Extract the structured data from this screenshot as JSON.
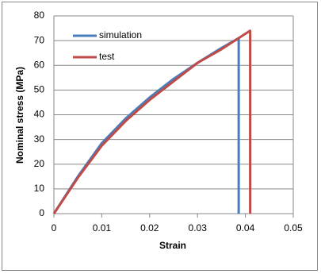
{
  "chart_data": {
    "type": "line",
    "xlabel": "Strain",
    "ylabel": "Nominal stress (MPa)",
    "xlim": [
      0,
      0.05
    ],
    "xticks": [
      0,
      0.01,
      0.02,
      0.03,
      0.04,
      0.05
    ],
    "ylim": [
      0,
      80
    ],
    "yticks": [
      0,
      10,
      20,
      30,
      40,
      50,
      60,
      70,
      80
    ],
    "grid": true,
    "legend": "upper-left",
    "series": [
      {
        "name": "simulation",
        "color": "#4a7ebb",
        "x": [
          0,
          0.005,
          0.01,
          0.015,
          0.02,
          0.025,
          0.03,
          0.035,
          0.0386,
          0.0386
        ],
        "values": [
          0,
          15,
          28.5,
          38.5,
          47,
          54.5,
          61,
          67,
          71,
          0
        ]
      },
      {
        "name": "test",
        "color": "#be4b48",
        "x": [
          0,
          0.005,
          0.01,
          0.015,
          0.02,
          0.025,
          0.03,
          0.035,
          0.041,
          0.041
        ],
        "values": [
          0,
          14.5,
          27.5,
          37.5,
          46,
          53.5,
          61,
          66.5,
          74,
          0
        ]
      }
    ]
  }
}
